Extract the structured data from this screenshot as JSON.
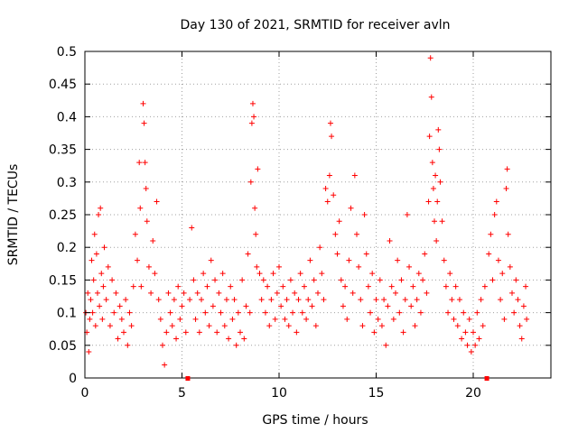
{
  "chart_data": {
    "type": "scatter",
    "title": "Day 130 of 2021, SRMTID for receiver avln",
    "xlabel": "GPS time / hours",
    "ylabel": "SRMTID / TECUs",
    "xlim": [
      0,
      24
    ],
    "ylim": [
      0,
      0.5
    ],
    "xticks": [
      0,
      5,
      10,
      15,
      20
    ],
    "xtick_labels": [
      "0",
      "5",
      "10",
      "15",
      "20"
    ],
    "yticks": [
      0,
      0.05,
      0.1,
      0.15,
      0.2,
      0.25,
      0.3,
      0.35,
      0.4,
      0.45,
      0.5
    ],
    "ytick_labels": [
      "0",
      "0.05",
      "0.1",
      "0.15",
      "0.2",
      "0.25",
      "0.3",
      "0.35",
      "0.4",
      "0.45",
      "0.5"
    ],
    "grid": true,
    "legend": "none",
    "marker": "plus",
    "color": "#ff0000",
    "gap_markers_x": [
      5.3,
      20.7
    ],
    "series": [
      {
        "points": [
          [
            0.05,
            0.1
          ],
          [
            0.1,
            0.07
          ],
          [
            0.15,
            0.13
          ],
          [
            0.2,
            0.04
          ],
          [
            0.25,
            0.09
          ],
          [
            0.3,
            0.12
          ],
          [
            0.35,
            0.18
          ],
          [
            0.4,
            0.1
          ],
          [
            0.45,
            0.15
          ],
          [
            0.5,
            0.22
          ],
          [
            0.55,
            0.08
          ],
          [
            0.6,
            0.19
          ],
          [
            0.65,
            0.13
          ],
          [
            0.7,
            0.25
          ],
          [
            0.75,
            0.11
          ],
          [
            0.8,
            0.26
          ],
          [
            0.85,
            0.16
          ],
          [
            0.9,
            0.09
          ],
          [
            0.95,
            0.14
          ],
          [
            1.0,
            0.2
          ],
          [
            1.1,
            0.12
          ],
          [
            1.2,
            0.17
          ],
          [
            1.3,
            0.08
          ],
          [
            1.4,
            0.15
          ],
          [
            1.5,
            0.1
          ],
          [
            1.6,
            0.13
          ],
          [
            1.7,
            0.06
          ],
          [
            1.8,
            0.11
          ],
          [
            1.9,
            0.09
          ],
          [
            2.0,
            0.07
          ],
          [
            2.1,
            0.12
          ],
          [
            2.2,
            0.05
          ],
          [
            2.3,
            0.1
          ],
          [
            2.4,
            0.08
          ],
          [
            2.5,
            0.14
          ],
          [
            2.6,
            0.22
          ],
          [
            2.7,
            0.18
          ],
          [
            2.8,
            0.33
          ],
          [
            2.85,
            0.26
          ],
          [
            2.9,
            0.14
          ],
          [
            3.0,
            0.42
          ],
          [
            3.05,
            0.39
          ],
          [
            3.1,
            0.33
          ],
          [
            3.15,
            0.29
          ],
          [
            3.2,
            0.24
          ],
          [
            3.3,
            0.17
          ],
          [
            3.4,
            0.13
          ],
          [
            3.5,
            0.21
          ],
          [
            3.6,
            0.16
          ],
          [
            3.7,
            0.27
          ],
          [
            3.8,
            0.12
          ],
          [
            3.9,
            0.09
          ],
          [
            4.0,
            0.05
          ],
          [
            4.1,
            0.02
          ],
          [
            4.2,
            0.07
          ],
          [
            4.3,
            0.13
          ],
          [
            4.4,
            0.1
          ],
          [
            4.5,
            0.08
          ],
          [
            4.6,
            0.12
          ],
          [
            4.7,
            0.06
          ],
          [
            4.8,
            0.14
          ],
          [
            4.9,
            0.09
          ],
          [
            5.0,
            0.11
          ],
          [
            5.1,
            0.13
          ],
          [
            5.2,
            0.07
          ],
          [
            5.4,
            0.12
          ],
          [
            5.5,
            0.23
          ],
          [
            5.6,
            0.15
          ],
          [
            5.7,
            0.09
          ],
          [
            5.8,
            0.13
          ],
          [
            5.9,
            0.07
          ],
          [
            6.0,
            0.12
          ],
          [
            6.1,
            0.16
          ],
          [
            6.2,
            0.1
          ],
          [
            6.3,
            0.14
          ],
          [
            6.4,
            0.08
          ],
          [
            6.5,
            0.18
          ],
          [
            6.6,
            0.11
          ],
          [
            6.7,
            0.15
          ],
          [
            6.8,
            0.07
          ],
          [
            6.9,
            0.13
          ],
          [
            7.0,
            0.1
          ],
          [
            7.1,
            0.16
          ],
          [
            7.2,
            0.08
          ],
          [
            7.3,
            0.12
          ],
          [
            7.4,
            0.06
          ],
          [
            7.5,
            0.14
          ],
          [
            7.6,
            0.09
          ],
          [
            7.7,
            0.12
          ],
          [
            7.8,
            0.05
          ],
          [
            7.9,
            0.1
          ],
          [
            8.0,
            0.07
          ],
          [
            8.1,
            0.15
          ],
          [
            8.2,
            0.06
          ],
          [
            8.3,
            0.11
          ],
          [
            8.4,
            0.19
          ],
          [
            8.5,
            0.1
          ],
          [
            8.55,
            0.3
          ],
          [
            8.6,
            0.39
          ],
          [
            8.65,
            0.42
          ],
          [
            8.7,
            0.4
          ],
          [
            8.75,
            0.26
          ],
          [
            8.8,
            0.22
          ],
          [
            8.85,
            0.17
          ],
          [
            8.9,
            0.32
          ],
          [
            9.0,
            0.16
          ],
          [
            9.1,
            0.12
          ],
          [
            9.2,
            0.15
          ],
          [
            9.3,
            0.1
          ],
          [
            9.4,
            0.14
          ],
          [
            9.5,
            0.08
          ],
          [
            9.6,
            0.12
          ],
          [
            9.7,
            0.16
          ],
          [
            9.8,
            0.09
          ],
          [
            9.9,
            0.13
          ],
          [
            10.0,
            0.17
          ],
          [
            10.1,
            0.11
          ],
          [
            10.2,
            0.14
          ],
          [
            10.3,
            0.09
          ],
          [
            10.4,
            0.12
          ],
          [
            10.5,
            0.08
          ],
          [
            10.6,
            0.15
          ],
          [
            10.7,
            0.1
          ],
          [
            10.8,
            0.13
          ],
          [
            10.9,
            0.07
          ],
          [
            11.0,
            0.12
          ],
          [
            11.1,
            0.16
          ],
          [
            11.2,
            0.1
          ],
          [
            11.3,
            0.14
          ],
          [
            11.4,
            0.09
          ],
          [
            11.5,
            0.12
          ],
          [
            11.6,
            0.18
          ],
          [
            11.7,
            0.11
          ],
          [
            11.8,
            0.15
          ],
          [
            11.9,
            0.08
          ],
          [
            12.0,
            0.13
          ],
          [
            12.1,
            0.2
          ],
          [
            12.2,
            0.16
          ],
          [
            12.3,
            0.12
          ],
          [
            12.4,
            0.29
          ],
          [
            12.5,
            0.27
          ],
          [
            12.6,
            0.31
          ],
          [
            12.65,
            0.39
          ],
          [
            12.7,
            0.37
          ],
          [
            12.8,
            0.28
          ],
          [
            12.9,
            0.22
          ],
          [
            13.0,
            0.19
          ],
          [
            13.1,
            0.24
          ],
          [
            13.2,
            0.15
          ],
          [
            13.3,
            0.11
          ],
          [
            13.4,
            0.14
          ],
          [
            13.5,
            0.09
          ],
          [
            13.6,
            0.18
          ],
          [
            13.7,
            0.26
          ],
          [
            13.8,
            0.13
          ],
          [
            13.9,
            0.31
          ],
          [
            14.0,
            0.22
          ],
          [
            14.1,
            0.17
          ],
          [
            14.2,
            0.12
          ],
          [
            14.3,
            0.08
          ],
          [
            14.4,
            0.25
          ],
          [
            14.5,
            0.19
          ],
          [
            14.6,
            0.14
          ],
          [
            14.7,
            0.1
          ],
          [
            14.8,
            0.16
          ],
          [
            14.9,
            0.07
          ],
          [
            15.0,
            0.12
          ],
          [
            15.1,
            0.09
          ],
          [
            15.2,
            0.15
          ],
          [
            15.3,
            0.08
          ],
          [
            15.4,
            0.12
          ],
          [
            15.5,
            0.05
          ],
          [
            15.6,
            0.11
          ],
          [
            15.7,
            0.21
          ],
          [
            15.8,
            0.14
          ],
          [
            15.9,
            0.09
          ],
          [
            16.0,
            0.13
          ],
          [
            16.1,
            0.18
          ],
          [
            16.2,
            0.1
          ],
          [
            16.3,
            0.15
          ],
          [
            16.4,
            0.07
          ],
          [
            16.5,
            0.12
          ],
          [
            16.6,
            0.25
          ],
          [
            16.7,
            0.17
          ],
          [
            16.8,
            0.11
          ],
          [
            16.9,
            0.14
          ],
          [
            17.0,
            0.08
          ],
          [
            17.1,
            0.12
          ],
          [
            17.2,
            0.16
          ],
          [
            17.3,
            0.1
          ],
          [
            17.4,
            0.15
          ],
          [
            17.5,
            0.19
          ],
          [
            17.6,
            0.13
          ],
          [
            17.7,
            0.27
          ],
          [
            17.75,
            0.37
          ],
          [
            17.8,
            0.49
          ],
          [
            17.85,
            0.43
          ],
          [
            17.9,
            0.33
          ],
          [
            17.95,
            0.29
          ],
          [
            18.0,
            0.24
          ],
          [
            18.05,
            0.31
          ],
          [
            18.1,
            0.21
          ],
          [
            18.15,
            0.27
          ],
          [
            18.2,
            0.38
          ],
          [
            18.25,
            0.35
          ],
          [
            18.3,
            0.3
          ],
          [
            18.4,
            0.24
          ],
          [
            18.5,
            0.18
          ],
          [
            18.6,
            0.14
          ],
          [
            18.7,
            0.1
          ],
          [
            18.8,
            0.16
          ],
          [
            18.9,
            0.12
          ],
          [
            19.0,
            0.09
          ],
          [
            19.1,
            0.14
          ],
          [
            19.2,
            0.08
          ],
          [
            19.3,
            0.12
          ],
          [
            19.4,
            0.06
          ],
          [
            19.5,
            0.1
          ],
          [
            19.6,
            0.07
          ],
          [
            19.7,
            0.05
          ],
          [
            19.8,
            0.09
          ],
          [
            19.9,
            0.04
          ],
          [
            20.0,
            0.07
          ],
          [
            20.1,
            0.05
          ],
          [
            20.2,
            0.1
          ],
          [
            20.3,
            0.06
          ],
          [
            20.4,
            0.12
          ],
          [
            20.5,
            0.08
          ],
          [
            20.6,
            0.14
          ],
          [
            20.8,
            0.19
          ],
          [
            20.9,
            0.22
          ],
          [
            21.0,
            0.15
          ],
          [
            21.1,
            0.25
          ],
          [
            21.2,
            0.27
          ],
          [
            21.3,
            0.18
          ],
          [
            21.4,
            0.12
          ],
          [
            21.5,
            0.16
          ],
          [
            21.6,
            0.09
          ],
          [
            21.7,
            0.29
          ],
          [
            21.75,
            0.32
          ],
          [
            21.8,
            0.22
          ],
          [
            21.9,
            0.17
          ],
          [
            22.0,
            0.13
          ],
          [
            22.1,
            0.1
          ],
          [
            22.2,
            0.15
          ],
          [
            22.3,
            0.12
          ],
          [
            22.4,
            0.08
          ],
          [
            22.5,
            0.06
          ],
          [
            22.6,
            0.11
          ],
          [
            22.7,
            0.14
          ],
          [
            22.75,
            0.09
          ]
        ]
      }
    ]
  }
}
